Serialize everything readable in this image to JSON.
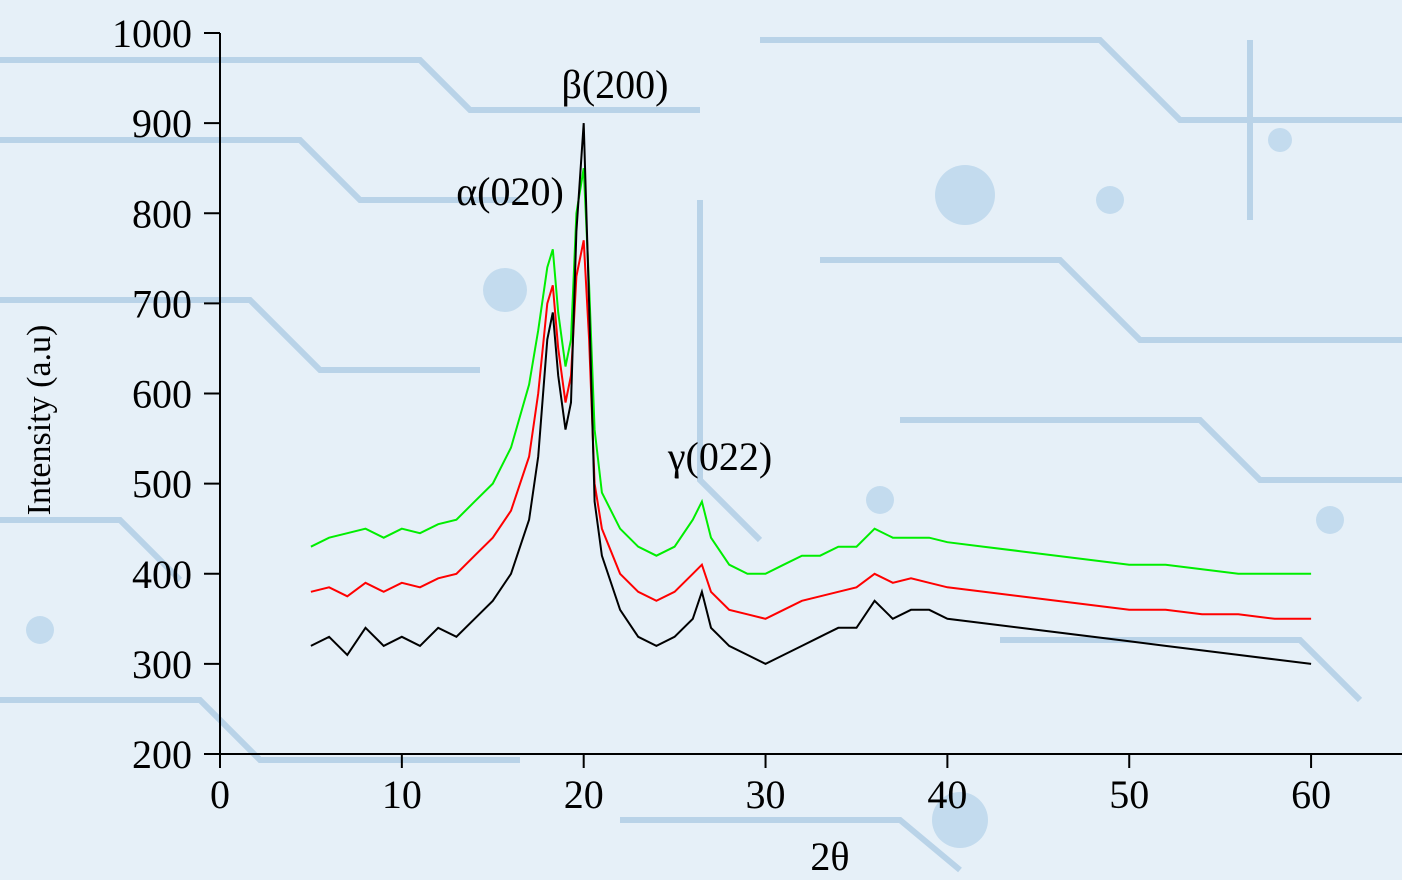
{
  "chart_data": {
    "type": "line",
    "x": [
      5,
      6,
      7,
      8,
      9,
      10,
      11,
      12,
      13,
      14,
      15,
      16,
      17,
      17.5,
      18,
      18.3,
      18.6,
      19,
      19.3,
      19.6,
      20,
      20.3,
      20.6,
      21,
      22,
      23,
      24,
      25,
      26,
      26.5,
      27,
      28,
      29,
      30,
      31,
      32,
      33,
      34,
      35,
      36,
      37,
      38,
      39,
      40,
      42,
      44,
      46,
      48,
      50,
      52,
      54,
      56,
      58,
      60
    ],
    "series": [
      {
        "color": "#00ee00",
        "values": [
          430,
          440,
          445,
          450,
          440,
          450,
          445,
          455,
          460,
          480,
          500,
          540,
          610,
          670,
          740,
          760,
          690,
          630,
          660,
          800,
          850,
          720,
          560,
          490,
          450,
          430,
          420,
          430,
          460,
          480,
          440,
          410,
          400,
          400,
          410,
          420,
          420,
          430,
          430,
          450,
          440,
          440,
          440,
          435,
          430,
          425,
          420,
          415,
          410,
          410,
          405,
          400,
          400,
          400
        ]
      },
      {
        "color": "#ff0000",
        "values": [
          380,
          385,
          375,
          390,
          380,
          390,
          385,
          395,
          400,
          420,
          440,
          470,
          530,
          600,
          700,
          720,
          650,
          590,
          620,
          730,
          770,
          660,
          500,
          450,
          400,
          380,
          370,
          380,
          400,
          410,
          380,
          360,
          355,
          350,
          360,
          370,
          375,
          380,
          385,
          400,
          390,
          395,
          390,
          385,
          380,
          375,
          370,
          365,
          360,
          360,
          355,
          355,
          350,
          350
        ]
      },
      {
        "color": "#000000",
        "values": [
          320,
          330,
          310,
          340,
          320,
          330,
          320,
          340,
          330,
          350,
          370,
          400,
          460,
          530,
          660,
          690,
          620,
          560,
          590,
          780,
          900,
          700,
          480,
          420,
          360,
          330,
          320,
          330,
          350,
          380,
          340,
          320,
          310,
          300,
          310,
          320,
          330,
          340,
          340,
          370,
          350,
          360,
          360,
          350,
          345,
          340,
          335,
          330,
          325,
          320,
          315,
          310,
          305,
          300
        ]
      }
    ],
    "xlabel": "2θ",
    "ylabel": "Intensity (a.u)",
    "xlim": [
      0,
      65
    ],
    "xticks": [
      0,
      10,
      20,
      30,
      40,
      50,
      60
    ],
    "ylim": [
      200,
      1000
    ],
    "yticks": [
      200,
      300,
      400,
      500,
      600,
      700,
      800,
      900,
      1000
    ],
    "annotations": [
      "α(020)",
      "β(200)",
      "γ(022)"
    ]
  }
}
